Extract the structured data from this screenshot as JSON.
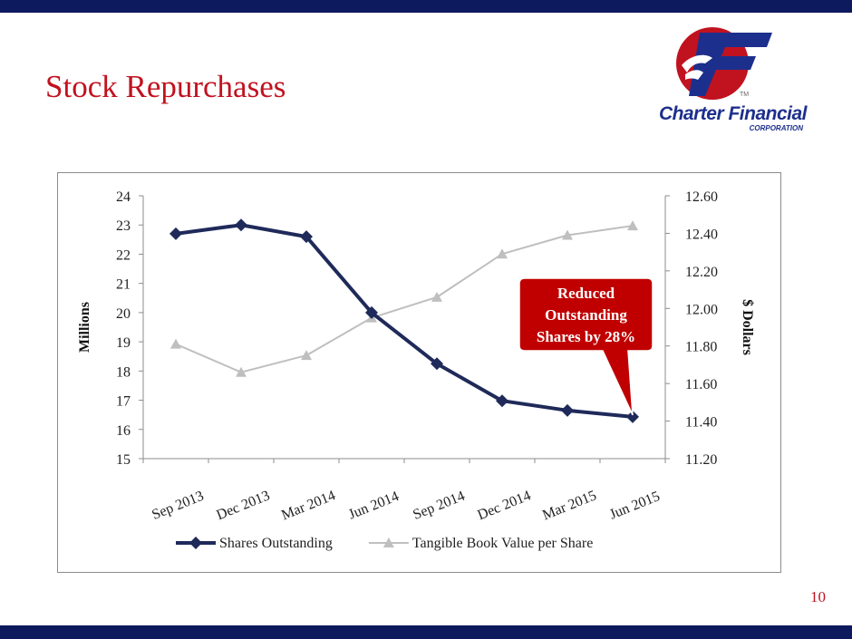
{
  "slide": {
    "title": "Stock Repurchases",
    "page_number": "10",
    "colors": {
      "band": "#0d1a5e",
      "title": "#c1121f",
      "accent": "#c00000"
    }
  },
  "logo": {
    "name": "Charter Financial",
    "sub": "CORPORATION",
    "tm": "TM"
  },
  "chart_data": {
    "type": "line",
    "categories": [
      "Sep 2013",
      "Dec 2013",
      "Mar 2014",
      "Jun 2014",
      "Sep 2014",
      "Dec 2014",
      "Mar 2015",
      "Jun 2015"
    ],
    "series": [
      {
        "name": "Shares Outstanding",
        "axis": "left",
        "color": "#1f2a5a",
        "marker": "diamond",
        "values": [
          22.7,
          23.0,
          22.6,
          20.0,
          18.25,
          16.98,
          16.65,
          16.43
        ]
      },
      {
        "name": "Tangible Book Value per Share",
        "axis": "right",
        "color": "#bfbfbf",
        "marker": "triangle",
        "values": [
          11.81,
          11.66,
          11.75,
          11.95,
          12.06,
          12.29,
          12.39,
          12.44
        ]
      }
    ],
    "ylabel": "Millions",
    "y2label": "$ Dollars",
    "ylim": [
      15,
      24
    ],
    "y2lim": [
      11.2,
      12.6
    ],
    "yticks": [
      "15",
      "16",
      "17",
      "18",
      "19",
      "20",
      "21",
      "22",
      "23",
      "24"
    ],
    "y2ticks": [
      "11.20",
      "11.40",
      "11.60",
      "11.80",
      "12.00",
      "12.20",
      "12.40",
      "12.60"
    ],
    "legend_position": "bottom",
    "grid": false,
    "callout": {
      "lines": [
        "Reduced",
        "Outstanding",
        "Shares by 28%"
      ],
      "points_to": "Jun 2015"
    }
  }
}
